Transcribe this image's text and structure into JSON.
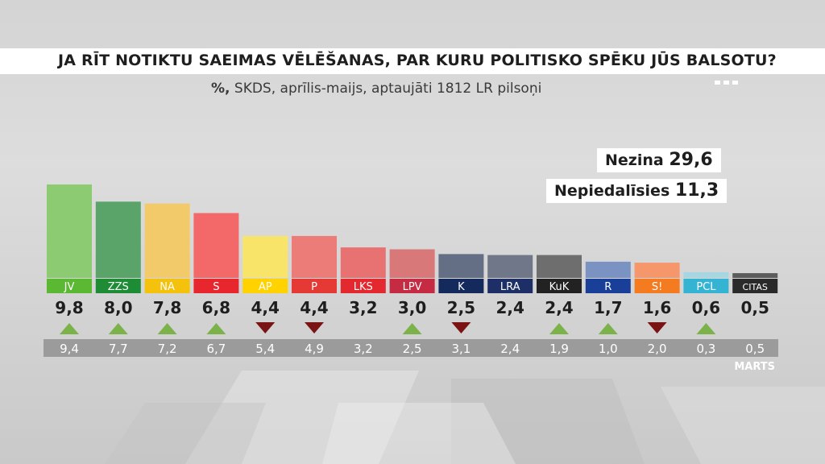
{
  "header": {
    "title": "JA RĪT NOTIKTU SAEIMAS VĒLĒŠANAS, PAR KURU POLITISKO SPĒKU JŪS BALSOTU?",
    "subtitle_bold": "%,",
    "subtitle_rest": " SKDS, aprīlis-maijs, aptaujāti 1812 LR pilsoņi"
  },
  "info": {
    "nezina_label": "Nezina",
    "nezina_value": "29,6",
    "nepiedalisies_label": "Nepiedalīsies",
    "nepiedalisies_value": "11,3"
  },
  "chart_data": {
    "type": "bar",
    "categories": [
      "JV",
      "ZZS",
      "NA",
      "S",
      "AP",
      "P",
      "LKS",
      "LPV",
      "K",
      "LRA",
      "KuK",
      "R",
      "S!",
      "PCL",
      "CITAS"
    ],
    "values": [
      9.8,
      8.0,
      7.8,
      6.8,
      4.4,
      4.4,
      3.2,
      3.0,
      2.5,
      2.4,
      2.4,
      1.7,
      1.6,
      0.6,
      0.5
    ],
    "value_labels": [
      "9,8",
      "8,0",
      "7,8",
      "6,8",
      "4,4",
      "4,4",
      "3,2",
      "3,0",
      "2,5",
      "2,4",
      "2,4",
      "1,7",
      "1,6",
      "0,6",
      "0,5"
    ],
    "previous_label": "MARTS",
    "previous_values": [
      9.4,
      7.7,
      7.2,
      6.7,
      5.4,
      4.9,
      3.2,
      2.5,
      3.1,
      2.4,
      1.9,
      1.0,
      2.0,
      0.3,
      0.5
    ],
    "previous_labels": [
      "9,4",
      "7,7",
      "7,2",
      "6,7",
      "5,4",
      "4,9",
      "3,2",
      "2,5",
      "3,1",
      "2,4",
      "1,9",
      "1,0",
      "2,0",
      "0,3",
      "0,5"
    ],
    "trend": [
      "up",
      "up",
      "up",
      "up",
      "down",
      "down",
      "none",
      "up",
      "down",
      "none",
      "up",
      "up",
      "down",
      "up",
      "none"
    ],
    "bar_colors": [
      "#8ccb72",
      "#5aa46a",
      "#f3ca6a",
      "#f36868",
      "#f9e46a",
      "#ec7c78",
      "#e87272",
      "#d87878",
      "#646e84",
      "#6f7788",
      "#6e6e6e",
      "#7b93c2",
      "#f5976a",
      "#a6d6e2",
      "#5c5c5c"
    ],
    "label_colors": [
      "#5bb833",
      "#1e8c35",
      "#f4c20d",
      "#e8262d",
      "#ffd200",
      "#e53935",
      "#e3282f",
      "#c52b43",
      "#152a5c",
      "#1d2f66",
      "#222222",
      "#1a3f98",
      "#f47b20",
      "#34b3d3",
      "#2a2a2a"
    ],
    "trend_colors": {
      "up": "#7bb34a",
      "down": "#7a1414"
    },
    "ylim": [
      0,
      10
    ]
  }
}
